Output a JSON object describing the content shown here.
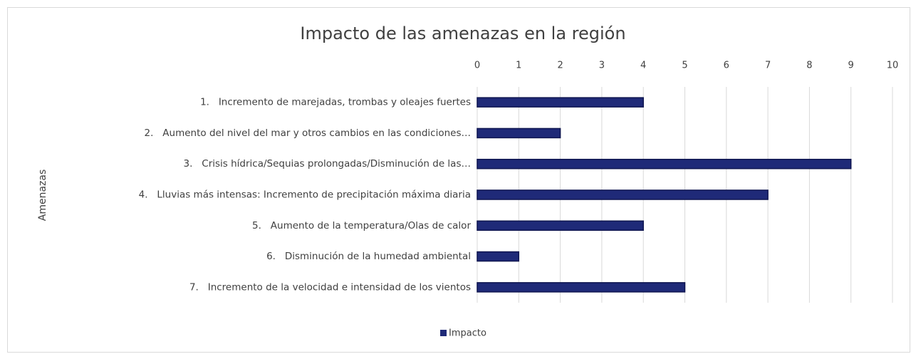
{
  "chart_data": {
    "type": "bar",
    "orientation": "horizontal",
    "title": "Impacto de las amenazas en la región",
    "y_axis_label": "Amenazas",
    "categories": [
      "1.   Incremento de marejadas, trombas y oleajes fuertes",
      "2.   Aumento del nivel del mar y otros cambios en las condiciones…",
      "3.   Crisis hídrica/Sequias prolongadas/Disminución de las…",
      "4.   Lluvias más intensas: Incremento de precipitación máxima diaria",
      "5.   Aumento de la temperatura/Olas de calor",
      "6.   Disminución de la humedad ambiental",
      "7.   Incremento de la velocidad e intensidad de los vientos"
    ],
    "series": [
      {
        "name": "Impacto",
        "color": "#1f2a78",
        "values": [
          4,
          2,
          9,
          7,
          4,
          1,
          5
        ]
      }
    ],
    "xlim": [
      0,
      10
    ],
    "xticks": [
      0,
      1,
      2,
      3,
      4,
      5,
      6,
      7,
      8,
      9,
      10
    ],
    "grid": true,
    "legend": "bottom"
  }
}
